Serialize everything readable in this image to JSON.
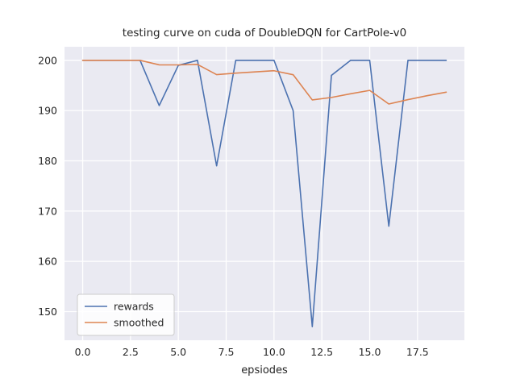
{
  "figure": {
    "background": "#ffffff"
  },
  "chart_data": {
    "type": "line",
    "title": "testing curve on cuda of DoubleDQN for CartPole-v0",
    "xlabel": "epsiodes",
    "ylabel": "",
    "x": [
      0,
      1,
      2,
      3,
      4,
      5,
      6,
      7,
      8,
      9,
      10,
      11,
      12,
      13,
      14,
      15,
      16,
      17,
      18,
      19
    ],
    "series": [
      {
        "name": "rewards",
        "color": "#4c72b0",
        "values": [
          200,
          200,
          200,
          200,
          191,
          199,
          200,
          179,
          200,
          200,
          200,
          190,
          147,
          197,
          200,
          200,
          167,
          200,
          200,
          200
        ]
      },
      {
        "name": "smoothed",
        "color": "#dd8452",
        "values": [
          200,
          200,
          200,
          200,
          199.1,
          199.09,
          199.18,
          197.16,
          197.45,
          197.7,
          197.93,
          197.14,
          192.12,
          192.61,
          193.35,
          194.02,
          191.31,
          192.18,
          192.96,
          193.67
        ]
      }
    ],
    "xlim": [
      -0.95,
      19.95
    ],
    "ylim": [
      144.3,
      202.7
    ],
    "xticks": [
      0,
      2.5,
      5,
      7.5,
      10,
      12.5,
      15,
      17.5
    ],
    "xtick_labels": [
      "0.0",
      "2.5",
      "5.0",
      "7.5",
      "10.0",
      "12.5",
      "15.0",
      "17.5"
    ],
    "yticks": [
      150,
      160,
      170,
      180,
      190,
      200
    ],
    "ytick_labels": [
      "150",
      "160",
      "170",
      "180",
      "190",
      "200"
    ],
    "grid": true,
    "legend": {
      "position": "lower-left",
      "labels": [
        "rewards",
        "smoothed"
      ]
    },
    "colors": {
      "plot_bg": "#eaeaf2",
      "grid": "#ffffff",
      "text": "#262626",
      "legend_bg": "rgba(255,255,255,0.85)",
      "legend_border": "#cccccc"
    }
  }
}
